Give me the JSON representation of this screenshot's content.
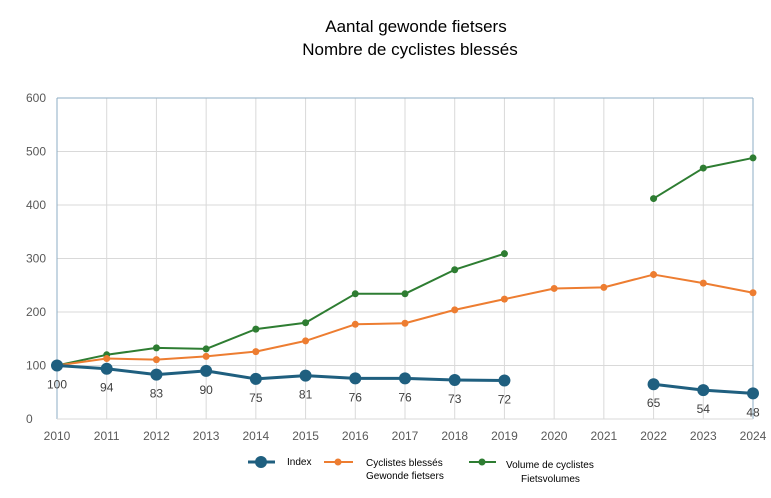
{
  "chart_data": {
    "type": "line",
    "title_line1": "Aantal gewonde fietsers",
    "title_line2": "Nombre de cyclistes blessés",
    "xlabel": "",
    "ylabel": "",
    "x": [
      "2010",
      "2011",
      "2012",
      "2013",
      "2014",
      "2015",
      "2016",
      "2017",
      "2018",
      "2019",
      "2020",
      "2021",
      "2022",
      "2023",
      "2024"
    ],
    "yticks": [
      "0",
      "100",
      "200",
      "300",
      "400",
      "500",
      "600"
    ],
    "ylim": [
      0,
      600
    ],
    "grid": true,
    "legend_position": "bottom",
    "series": [
      {
        "key": "index",
        "name": "Index",
        "name_line2": "",
        "color": "#1f5f7f",
        "values": [
          100,
          94,
          83,
          90,
          75,
          81,
          76,
          76,
          73,
          72,
          null,
          null,
          65,
          54,
          48
        ],
        "labels": [
          "100",
          "94",
          "83",
          "90",
          "75",
          "81",
          "76",
          "76",
          "73",
          "72",
          "",
          "",
          "65",
          "54",
          "48"
        ]
      },
      {
        "key": "injured",
        "name": "Cyclistes blessés",
        "name_line2": "Gewonde fietsers",
        "color": "#ed7d31",
        "values": [
          100,
          113,
          111,
          117,
          126,
          146,
          177,
          179,
          204,
          224,
          244,
          246,
          270,
          254,
          236
        ]
      },
      {
        "key": "volume",
        "name": "Volume de cyclistes",
        "name_line2": "Fietsvolumes",
        "color": "#2e7d32",
        "values": [
          100,
          120,
          133,
          131,
          168,
          180,
          234,
          234,
          279,
          309,
          null,
          null,
          412,
          469,
          488
        ]
      }
    ]
  }
}
